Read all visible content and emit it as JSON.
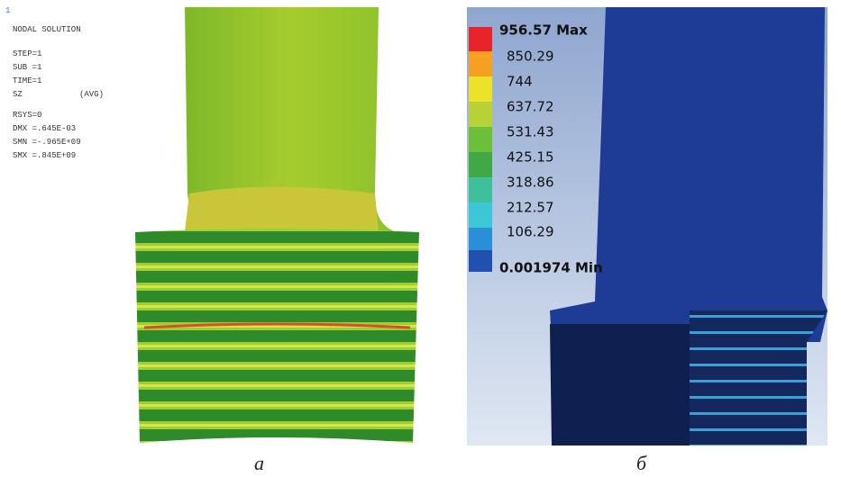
{
  "panel_a": {
    "marker": "1",
    "title": "NODAL SOLUTION",
    "lines": [
      "STEP=1",
      "SUB =1",
      "TIME=1",
      "SZ",
      "(AVG)",
      "RSYS=0",
      "DMX =.645E-03",
      "SMN =-.965E+09",
      "SMX =.845E+09"
    ],
    "caption": "а"
  },
  "panel_b": {
    "legend": [
      "956.57 Max",
      "850.29",
      "744",
      "637.72",
      "531.43",
      "425.15",
      "318.86",
      "212.57",
      "106.29",
      "0.001974 Min"
    ],
    "caption": "б"
  }
}
